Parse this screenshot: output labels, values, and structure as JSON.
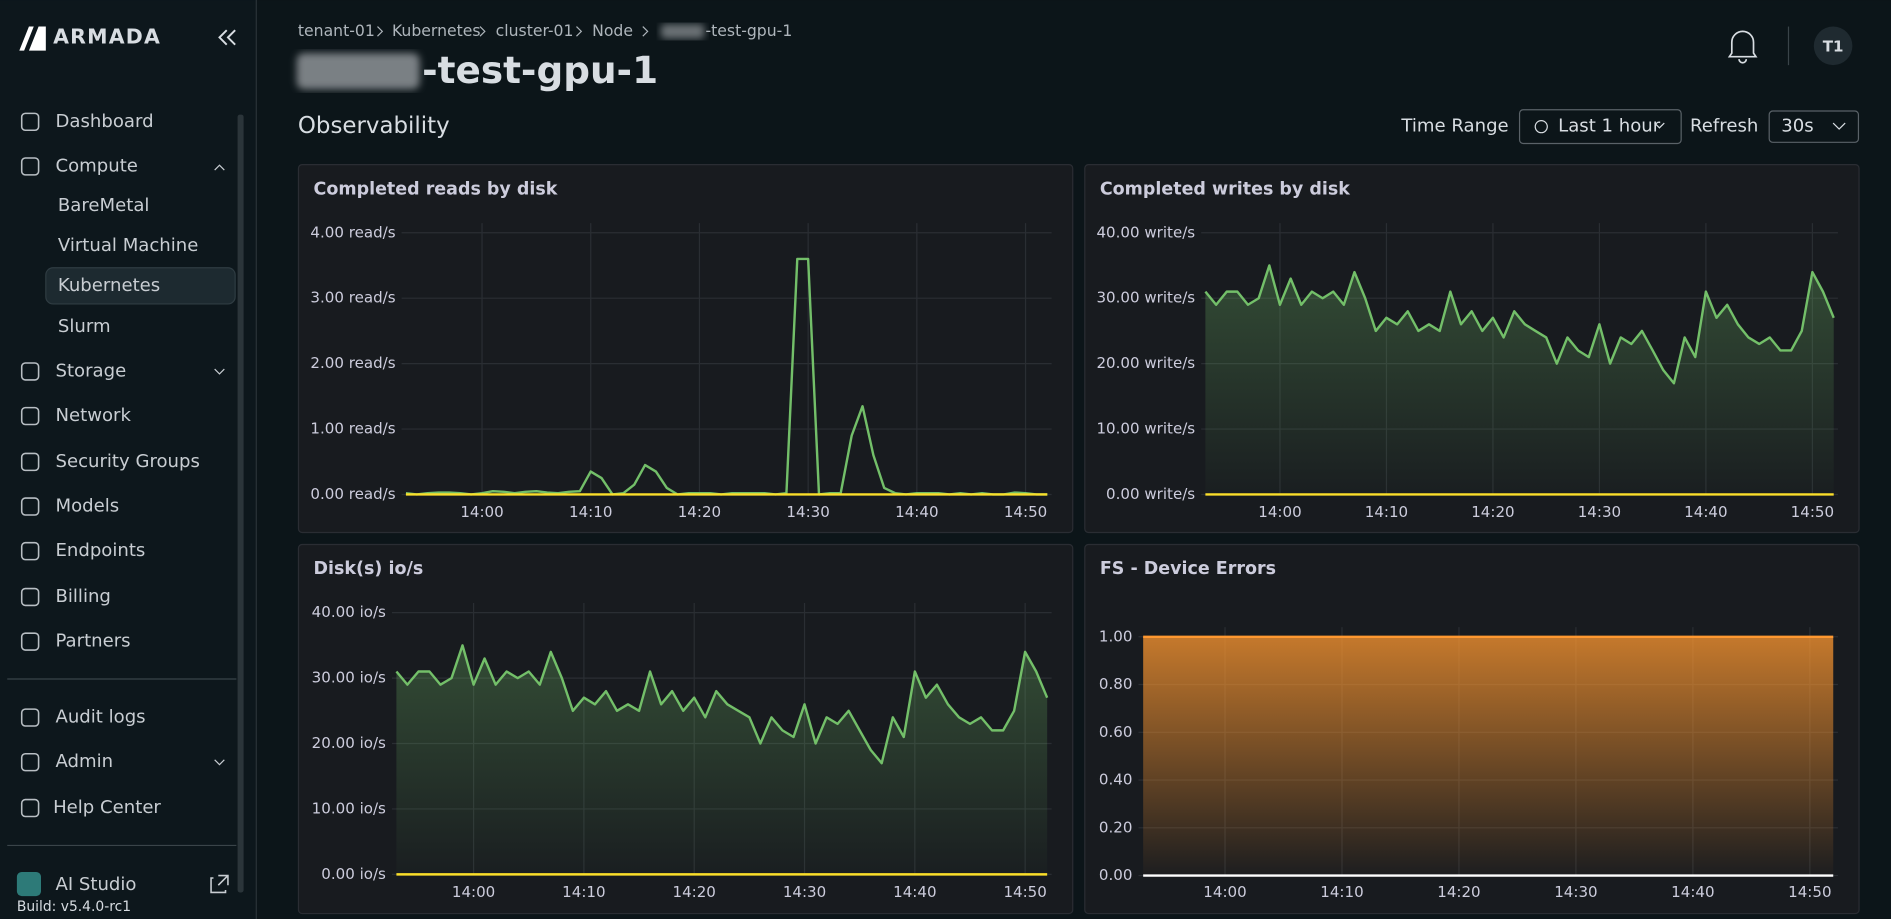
{
  "sidebar": {
    "brand": "ARMADA",
    "main": [
      "Dashboard",
      "Compute",
      "BareMetal",
      "Virtual Machine",
      "Kubernetes",
      "Slurm",
      "Storage",
      "Network",
      "Security Groups",
      "Models",
      "Endpoints",
      "Billing",
      "Partners"
    ],
    "bottom": [
      "Audit logs",
      "Admin",
      "Help Center"
    ],
    "ai_studio": "AI Studio",
    "build": "Build: v5.4.0-rc1"
  },
  "header": {
    "breadcrumb": [
      "tenant-01",
      "Kubernetes",
      "cluster-01",
      "Node",
      "-test-gpu-1"
    ],
    "title": "-test-gpu-1",
    "avatar": "T1"
  },
  "toolbar": {
    "section": "Observability",
    "time_range_label": "Time Range",
    "time_range": "Last 1 hour",
    "refresh_label": "Refresh",
    "refresh": "30s"
  },
  "chart_data": [
    {
      "type": "line",
      "title": "Completed reads by disk",
      "categories": [
        null,
        null,
        null,
        null,
        null,
        null,
        null,
        "14:00",
        null,
        null,
        null,
        null,
        null,
        null,
        null,
        null,
        null,
        "14:10",
        null,
        null,
        null,
        null,
        null,
        null,
        null,
        null,
        null,
        "14:20",
        null,
        null,
        null,
        null,
        null,
        null,
        null,
        null,
        null,
        "14:30",
        null,
        null,
        null,
        null,
        null,
        null,
        null,
        null,
        null,
        "14:40",
        null,
        null,
        null,
        null,
        null,
        null,
        null,
        null,
        null,
        "14:50",
        null,
        null
      ],
      "series": [
        {
          "color": "#73bf69",
          "fill": false,
          "values": [
            0.02,
            0,
            0.02,
            0.03,
            0.03,
            0.02,
            0,
            0.02,
            0.05,
            0.04,
            0.02,
            0.04,
            0.05,
            0.03,
            0.02,
            0.04,
            0.05,
            0.35,
            0.25,
            0,
            0.02,
            0.15,
            0.45,
            0.35,
            0.1,
            0,
            0.02,
            0.02,
            0.02,
            0,
            0.02,
            0.02,
            0.02,
            0.02,
            0,
            0.02,
            3.6,
            3.6,
            0,
            0.02,
            0.02,
            0.9,
            1.35,
            0.6,
            0.1,
            0.02,
            0,
            0.02,
            0.02,
            0.02,
            0,
            0.02,
            0,
            0.02,
            0,
            0,
            0.03,
            0.02,
            0,
            0
          ]
        },
        {
          "color": "#fade2a",
          "fill": false,
          "values": [
            0,
            0,
            0,
            0,
            0,
            0,
            0,
            0,
            0,
            0,
            0,
            0,
            0,
            0,
            0,
            0,
            0,
            0,
            0,
            0,
            0,
            0,
            0,
            0,
            0,
            0,
            0,
            0,
            0,
            0,
            0,
            0,
            0,
            0,
            0,
            0,
            0,
            0,
            0,
            0,
            0,
            0,
            0,
            0,
            0,
            0,
            0,
            0,
            0,
            0,
            0,
            0,
            0,
            0,
            0,
            0,
            0,
            0,
            0,
            0
          ]
        }
      ],
      "ylim": [
        0,
        4
      ],
      "yticks": [
        {
          "value": 0,
          "label": "0.00 read/s"
        },
        {
          "value": 1,
          "label": "1.00 read/s"
        },
        {
          "value": 2,
          "label": "2.00 read/s"
        },
        {
          "value": 3,
          "label": "3.00 read/s"
        },
        {
          "value": 4,
          "label": "4.00 read/s"
        }
      ],
      "grid": true
    },
    {
      "type": "line",
      "title": "Completed writes by disk",
      "categories": [
        null,
        null,
        null,
        null,
        null,
        null,
        null,
        "14:00",
        null,
        null,
        null,
        null,
        null,
        null,
        null,
        null,
        null,
        "14:10",
        null,
        null,
        null,
        null,
        null,
        null,
        null,
        null,
        null,
        "14:20",
        null,
        null,
        null,
        null,
        null,
        null,
        null,
        null,
        null,
        "14:30",
        null,
        null,
        null,
        null,
        null,
        null,
        null,
        null,
        null,
        "14:40",
        null,
        null,
        null,
        null,
        null,
        null,
        null,
        null,
        null,
        "14:50",
        null,
        null
      ],
      "series": [
        {
          "color": "#73bf69",
          "fill": true,
          "values": [
            31,
            29,
            31,
            31,
            29,
            30,
            35,
            29,
            33,
            29,
            31,
            30,
            31,
            29,
            34,
            30,
            25,
            27,
            26,
            28,
            25,
            26,
            25,
            31,
            26,
            28,
            25,
            27,
            24,
            28,
            26,
            25,
            24,
            20,
            24,
            22,
            21,
            26,
            20,
            24,
            23,
            25,
            22,
            19,
            17,
            24,
            21,
            31,
            27,
            29,
            26,
            24,
            23,
            24,
            22,
            22,
            25,
            34,
            31,
            27
          ]
        },
        {
          "color": "#fade2a",
          "fill": false,
          "values": [
            0,
            0,
            0,
            0,
            0,
            0,
            0,
            0,
            0,
            0,
            0,
            0,
            0,
            0,
            0,
            0,
            0,
            0,
            0,
            0,
            0,
            0,
            0,
            0,
            0,
            0,
            0,
            0,
            0,
            0,
            0,
            0,
            0,
            0,
            0,
            0,
            0,
            0,
            0,
            0,
            0,
            0,
            0,
            0,
            0,
            0,
            0,
            0,
            0,
            0,
            0,
            0,
            0,
            0,
            0,
            0,
            0,
            0,
            0,
            0
          ]
        }
      ],
      "ylim": [
        0,
        40
      ],
      "yticks": [
        {
          "value": 0,
          "label": "0.00 write/s"
        },
        {
          "value": 10,
          "label": "10.00 write/s"
        },
        {
          "value": 20,
          "label": "20.00 write/s"
        },
        {
          "value": 30,
          "label": "30.00 write/s"
        },
        {
          "value": 40,
          "label": "40.00 write/s"
        }
      ],
      "grid": true
    },
    {
      "type": "line",
      "title": "Disk(s) io/s",
      "categories": [
        null,
        null,
        null,
        null,
        null,
        null,
        null,
        "14:00",
        null,
        null,
        null,
        null,
        null,
        null,
        null,
        null,
        null,
        "14:10",
        null,
        null,
        null,
        null,
        null,
        null,
        null,
        null,
        null,
        "14:20",
        null,
        null,
        null,
        null,
        null,
        null,
        null,
        null,
        null,
        "14:30",
        null,
        null,
        null,
        null,
        null,
        null,
        null,
        null,
        null,
        "14:40",
        null,
        null,
        null,
        null,
        null,
        null,
        null,
        null,
        null,
        "14:50",
        null,
        null
      ],
      "series": [
        {
          "color": "#73bf69",
          "fill": true,
          "values": [
            31,
            29,
            31,
            31,
            29,
            30,
            35,
            29,
            33,
            29,
            31,
            30,
            31,
            29,
            34,
            30,
            25,
            27,
            26,
            28,
            25,
            26,
            25,
            31,
            26,
            28,
            25,
            27,
            24,
            28,
            26,
            25,
            24,
            20,
            24,
            22,
            21,
            26,
            20,
            24,
            23,
            25,
            22,
            19,
            17,
            24,
            21,
            31,
            27,
            29,
            26,
            24,
            23,
            24,
            22,
            22,
            25,
            34,
            31,
            27
          ]
        },
        {
          "color": "#fade2a",
          "fill": false,
          "values": [
            0,
            0,
            0,
            0,
            0,
            0,
            0,
            0,
            0,
            0,
            0,
            0,
            0,
            0,
            0,
            0,
            0,
            0,
            0,
            0,
            0,
            0,
            0,
            0,
            0,
            0,
            0,
            0,
            0,
            0,
            0,
            0,
            0,
            0,
            0,
            0,
            0,
            0,
            0,
            0,
            0,
            0,
            0,
            0,
            0,
            0,
            0,
            0,
            0,
            0,
            0,
            0,
            0,
            0,
            0,
            0,
            0,
            0,
            0,
            0
          ]
        }
      ],
      "ylim": [
        0,
        40
      ],
      "yticks": [
        {
          "value": 0,
          "label": "0.00 io/s"
        },
        {
          "value": 10,
          "label": "10.00 io/s"
        },
        {
          "value": 20,
          "label": "20.00 io/s"
        },
        {
          "value": 30,
          "label": "30.00 io/s"
        },
        {
          "value": 40,
          "label": "40.00 io/s"
        }
      ],
      "grid": true
    },
    {
      "type": "line",
      "title": "FS - Device Errors",
      "categories": [
        null,
        null,
        null,
        null,
        null,
        null,
        null,
        "14:00",
        null,
        null,
        null,
        null,
        null,
        null,
        null,
        null,
        null,
        "14:10",
        null,
        null,
        null,
        null,
        null,
        null,
        null,
        null,
        null,
        "14:20",
        null,
        null,
        null,
        null,
        null,
        null,
        null,
        null,
        null,
        "14:30",
        null,
        null,
        null,
        null,
        null,
        null,
        null,
        null,
        null,
        "14:40",
        null,
        null,
        null,
        null,
        null,
        null,
        null,
        null,
        null,
        "14:50",
        null,
        null
      ],
      "series": [
        {
          "color": "#ff9830",
          "fill": true,
          "values": [
            1,
            1,
            1,
            1,
            1,
            1,
            1,
            1,
            1,
            1,
            1,
            1,
            1,
            1,
            1,
            1,
            1,
            1,
            1,
            1,
            1,
            1,
            1,
            1,
            1,
            1,
            1,
            1,
            1,
            1,
            1,
            1,
            1,
            1,
            1,
            1,
            1,
            1,
            1,
            1,
            1,
            1,
            1,
            1,
            1,
            1,
            1,
            1,
            1,
            1,
            1,
            1,
            1,
            1,
            1,
            1,
            1,
            1,
            1,
            1
          ]
        },
        {
          "color": "#ffffff",
          "fill": false,
          "values": [
            0,
            0,
            0,
            0,
            0,
            0,
            0,
            0,
            0,
            0,
            0,
            0,
            0,
            0,
            0,
            0,
            0,
            0,
            0,
            0,
            0,
            0,
            0,
            0,
            0,
            0,
            0,
            0,
            0,
            0,
            0,
            0,
            0,
            0,
            0,
            0,
            0,
            0,
            0,
            0,
            0,
            0,
            0,
            0,
            0,
            0,
            0,
            0,
            0,
            0,
            0,
            0,
            0,
            0,
            0,
            0,
            0,
            0,
            0,
            0
          ]
        }
      ],
      "ylim": [
        0,
        1
      ],
      "yticks": [
        {
          "value": 0,
          "label": "0.00"
        },
        {
          "value": 0.2,
          "label": "0.20"
        },
        {
          "value": 0.4,
          "label": "0.40"
        },
        {
          "value": 0.6,
          "label": "0.60"
        },
        {
          "value": 0.8,
          "label": "0.80"
        },
        {
          "value": 1,
          "label": "1.00"
        }
      ],
      "grid": true
    }
  ]
}
